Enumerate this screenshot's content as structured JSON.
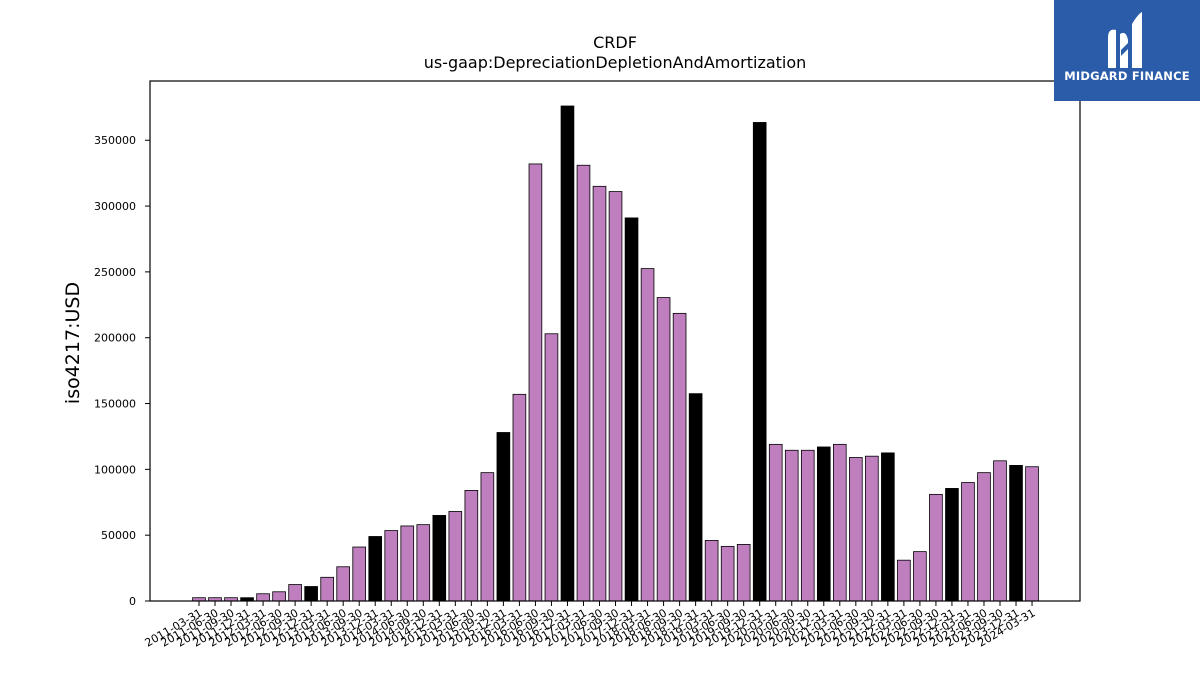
{
  "chart_data": {
    "type": "bar",
    "title": "CRDF",
    "subtitle": "us-gaap:DepreciationDepletionAndAmortization",
    "xlabel": "",
    "ylabel": "iso4217:USD",
    "ylim": [
      0,
      395000
    ],
    "yticks": [
      0,
      50000,
      100000,
      150000,
      200000,
      250000,
      300000,
      350000
    ],
    "colors": {
      "quarter": "#bf7fbf",
      "fiscal_year_end": "#000000",
      "edge": "#000000"
    },
    "categories": [
      "2011-03-31",
      "2011-06-30",
      "2011-09-30",
      "2011-12-31",
      "2012-03-31",
      "2012-06-30",
      "2012-09-30",
      "2012-12-31",
      "2013-03-31",
      "2013-06-30",
      "2013-09-30",
      "2013-12-31",
      "2014-03-31",
      "2014-06-30",
      "2014-09-30",
      "2014-12-31",
      "2015-03-31",
      "2015-06-30",
      "2015-09-30",
      "2015-12-31",
      "2016-03-31",
      "2016-06-30",
      "2016-09-30",
      "2016-12-31",
      "2017-03-31",
      "2017-06-30",
      "2017-09-30",
      "2017-12-31",
      "2018-03-31",
      "2018-06-30",
      "2018-09-30",
      "2018-12-31",
      "2019-03-31",
      "2019-06-30",
      "2019-09-30",
      "2019-12-31",
      "2020-03-31",
      "2020-06-30",
      "2020-09-30",
      "2020-12-31",
      "2021-03-31",
      "2021-06-30",
      "2021-09-30",
      "2021-12-31",
      "2022-03-31",
      "2022-06-30",
      "2022-09-30",
      "2022-12-31",
      "2023-03-31",
      "2023-06-30",
      "2023-09-30",
      "2023-12-31",
      "2024-03-31"
    ],
    "values": [
      2500,
      2500,
      2500,
      2500,
      5500,
      7000,
      12500,
      11000,
      18000,
      26000,
      41000,
      49000,
      53500,
      57000,
      58000,
      65000,
      68000,
      84000,
      97500,
      128000,
      157000,
      332000,
      203000,
      376000,
      331000,
      315000,
      311000,
      291000,
      252500,
      230500,
      218500,
      157500,
      46000,
      41500,
      43000,
      363500,
      119000,
      114500,
      114500,
      117000,
      119000,
      109000,
      110000,
      112500,
      31000,
      37500,
      81000,
      85500,
      90000,
      97500,
      106500,
      103000,
      102000
    ],
    "fiscal_year_end": [
      false,
      false,
      false,
      true,
      false,
      false,
      false,
      true,
      false,
      false,
      false,
      true,
      false,
      false,
      false,
      true,
      false,
      false,
      false,
      true,
      false,
      false,
      false,
      true,
      false,
      false,
      false,
      true,
      false,
      false,
      false,
      true,
      false,
      false,
      false,
      true,
      false,
      false,
      false,
      true,
      false,
      false,
      false,
      true,
      false,
      false,
      false,
      true,
      false,
      false,
      false,
      true,
      false
    ]
  },
  "logo": {
    "name": "MIDGARD FINANCE"
  }
}
